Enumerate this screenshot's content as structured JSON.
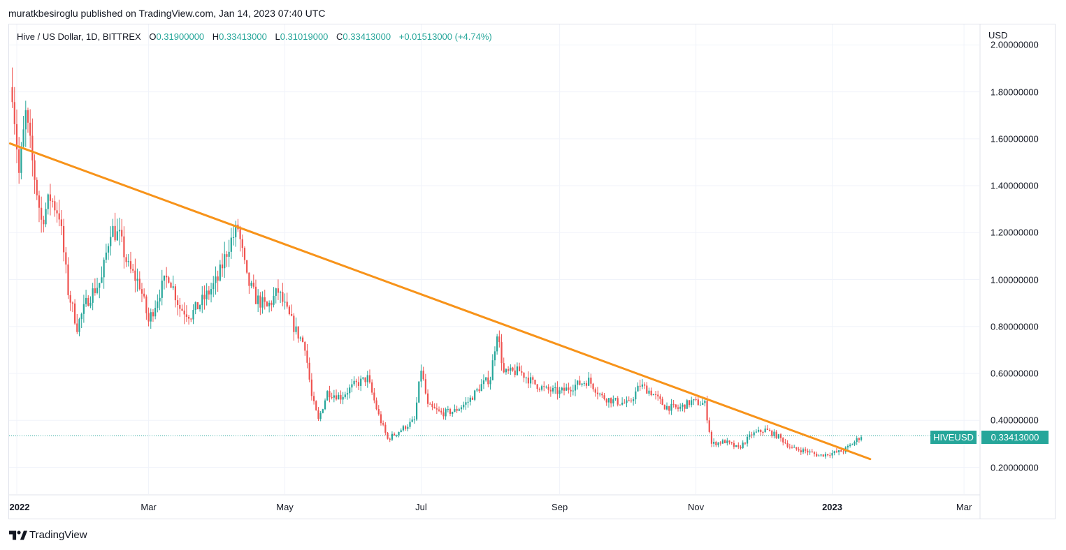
{
  "header": {
    "published": "muratkbesiroglu published on TradingView.com, Jan 14, 2023 07:40 UTC"
  },
  "legend": {
    "symbol": "Hive / US Dollar, 1D, BITTREX",
    "o_label": "O",
    "o_value": "0.31900000",
    "h_label": "H",
    "h_value": "0.33413000",
    "l_label": "L",
    "l_value": "0.31019000",
    "c_label": "C",
    "c_value": "0.33413000",
    "change": "+0.01513000 (+4.74%)"
  },
  "price_badge": {
    "symbol": "HIVEUSD",
    "value": "0.33413000"
  },
  "brand": {
    "name": "TradingView"
  },
  "colors": {
    "up": "#26a69a",
    "down": "#ef5350",
    "trendline": "#f7931a",
    "grid": "#f0f3fa"
  },
  "chart_data": {
    "type": "candlestick",
    "unit": "USD",
    "ylim": [
      0.08,
      2.0
    ],
    "y_ticks": [
      {
        "value": 0.2,
        "label": "0.20000000"
      },
      {
        "value": 0.4,
        "label": "0.40000000"
      },
      {
        "value": 0.6,
        "label": "0.60000000"
      },
      {
        "value": 0.8,
        "label": "0.80000000"
      },
      {
        "value": 1.0,
        "label": "1.00000000"
      },
      {
        "value": 1.2,
        "label": "1.20000000"
      },
      {
        "value": 1.4,
        "label": "1.40000000"
      },
      {
        "value": 1.6,
        "label": "1.60000000"
      },
      {
        "value": 1.8,
        "label": "1.80000000"
      },
      {
        "value": 2.0,
        "label": "2.00000000"
      }
    ],
    "x_ticks": [
      {
        "date": "2022-01-01",
        "label": "2022",
        "bold": true
      },
      {
        "date": "2022-03-01",
        "label": "Mar"
      },
      {
        "date": "2022-05-01",
        "label": "May"
      },
      {
        "date": "2022-07-01",
        "label": "Jul"
      },
      {
        "date": "2022-09-01",
        "label": "Sep"
      },
      {
        "date": "2022-11-01",
        "label": "Nov"
      },
      {
        "date": "2023-01-01",
        "label": "2023",
        "bold": true
      },
      {
        "date": "2023-03-01",
        "label": "Mar"
      }
    ],
    "xlim": [
      "2021-12-30",
      "2023-03-20"
    ],
    "price_path": [
      [
        "2021-12-30",
        1.82
      ],
      [
        "2022-01-02",
        1.45
      ],
      [
        "2022-01-05",
        1.7
      ],
      [
        "2022-01-08",
        1.5
      ],
      [
        "2022-01-12",
        1.25
      ],
      [
        "2022-01-16",
        1.35
      ],
      [
        "2022-01-20",
        1.28
      ],
      [
        "2022-01-24",
        0.95
      ],
      [
        "2022-01-28",
        0.8
      ],
      [
        "2022-02-02",
        0.92
      ],
      [
        "2022-02-08",
        1.0
      ],
      [
        "2022-02-12",
        1.22
      ],
      [
        "2022-02-16",
        1.18
      ],
      [
        "2022-02-20",
        1.05
      ],
      [
        "2022-02-25",
        0.98
      ],
      [
        "2022-03-01",
        0.82
      ],
      [
        "2022-03-06",
        0.95
      ],
      [
        "2022-03-10",
        1.02
      ],
      [
        "2022-03-15",
        0.88
      ],
      [
        "2022-03-20",
        0.85
      ],
      [
        "2022-03-26",
        0.92
      ],
      [
        "2022-04-01",
        1.0
      ],
      [
        "2022-04-06",
        1.15
      ],
      [
        "2022-04-10",
        1.22
      ],
      [
        "2022-04-14",
        1.0
      ],
      [
        "2022-04-18",
        0.92
      ],
      [
        "2022-04-23",
        0.88
      ],
      [
        "2022-04-28",
        0.95
      ],
      [
        "2022-05-02",
        0.86
      ],
      [
        "2022-05-06",
        0.78
      ],
      [
        "2022-05-10",
        0.72
      ],
      [
        "2022-05-13",
        0.5
      ],
      [
        "2022-05-16",
        0.4
      ],
      [
        "2022-05-20",
        0.52
      ],
      [
        "2022-05-26",
        0.5
      ],
      [
        "2022-06-01",
        0.55
      ],
      [
        "2022-06-07",
        0.58
      ],
      [
        "2022-06-12",
        0.42
      ],
      [
        "2022-06-16",
        0.32
      ],
      [
        "2022-06-22",
        0.36
      ],
      [
        "2022-06-28",
        0.4
      ],
      [
        "2022-07-01",
        0.62
      ],
      [
        "2022-07-04",
        0.46
      ],
      [
        "2022-07-10",
        0.43
      ],
      [
        "2022-07-16",
        0.44
      ],
      [
        "2022-07-22",
        0.48
      ],
      [
        "2022-07-28",
        0.55
      ],
      [
        "2022-08-01",
        0.58
      ],
      [
        "2022-08-04",
        0.78
      ],
      [
        "2022-08-07",
        0.6
      ],
      [
        "2022-08-14",
        0.61
      ],
      [
        "2022-08-20",
        0.56
      ],
      [
        "2022-08-26",
        0.53
      ],
      [
        "2022-09-01",
        0.52
      ],
      [
        "2022-09-08",
        0.55
      ],
      [
        "2022-09-14",
        0.57
      ],
      [
        "2022-09-20",
        0.5
      ],
      [
        "2022-09-26",
        0.48
      ],
      [
        "2022-10-02",
        0.47
      ],
      [
        "2022-10-07",
        0.55
      ],
      [
        "2022-10-12",
        0.52
      ],
      [
        "2022-10-18",
        0.46
      ],
      [
        "2022-10-24",
        0.45
      ],
      [
        "2022-10-30",
        0.48
      ],
      [
        "2022-11-05",
        0.47
      ],
      [
        "2022-11-08",
        0.3
      ],
      [
        "2022-11-14",
        0.31
      ],
      [
        "2022-11-20",
        0.28
      ],
      [
        "2022-11-26",
        0.34
      ],
      [
        "2022-12-02",
        0.36
      ],
      [
        "2022-12-08",
        0.33
      ],
      [
        "2022-12-14",
        0.28
      ],
      [
        "2022-12-20",
        0.27
      ],
      [
        "2022-12-26",
        0.25
      ],
      [
        "2023-01-01",
        0.26
      ],
      [
        "2023-01-06",
        0.27
      ],
      [
        "2023-01-10",
        0.3
      ],
      [
        "2023-01-14",
        0.334
      ]
    ],
    "trendline": [
      [
        "2021-12-29",
        1.58
      ],
      [
        "2023-01-18",
        0.235
      ]
    ],
    "last_price": 0.33413
  }
}
